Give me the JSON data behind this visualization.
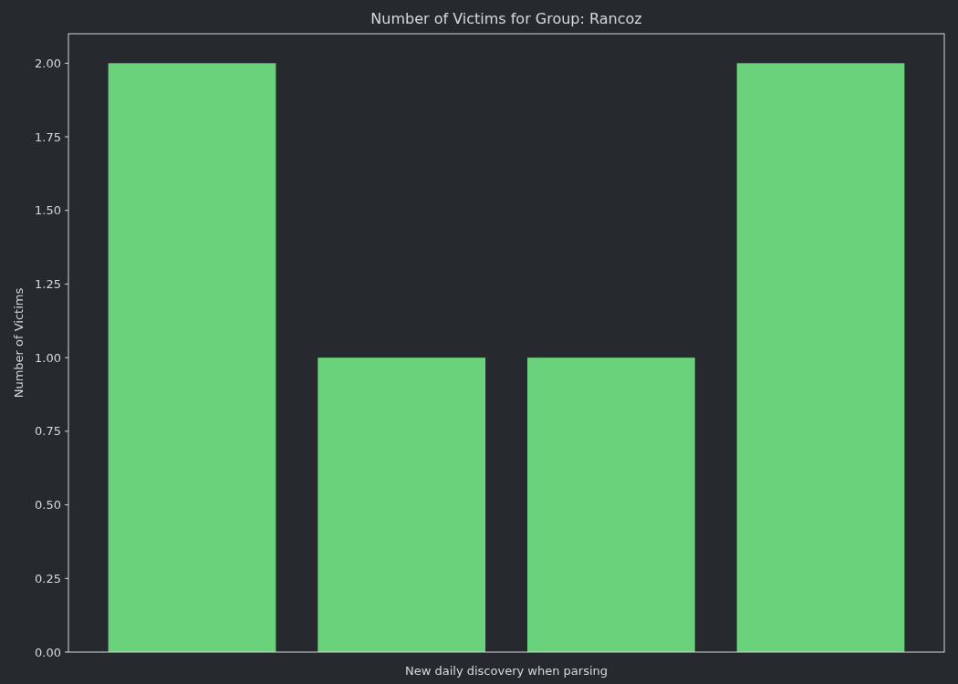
{
  "chart_data": {
    "type": "bar",
    "title": "Number of Victims for Group: Rancoz",
    "xlabel": "New daily discovery when parsing",
    "ylabel": "Number of Victims",
    "categories": [
      null,
      null,
      null,
      null
    ],
    "values": [
      2,
      1,
      1,
      2
    ],
    "color": "#6ad27a",
    "ylim": [
      0,
      2.1
    ],
    "yticks": [
      {
        "value": 0,
        "label": "0.00"
      },
      {
        "value": 0.25,
        "label": "0.25"
      },
      {
        "value": 0.5,
        "label": "0.50"
      },
      {
        "value": 0.75,
        "label": "0.75"
      },
      {
        "value": 1,
        "label": "1.00"
      },
      {
        "value": 1.25,
        "label": "1.25"
      },
      {
        "value": 1.5,
        "label": "1.50"
      },
      {
        "value": 1.75,
        "label": "1.75"
      },
      {
        "value": 2,
        "label": "2.00"
      }
    ],
    "grid": false
  }
}
